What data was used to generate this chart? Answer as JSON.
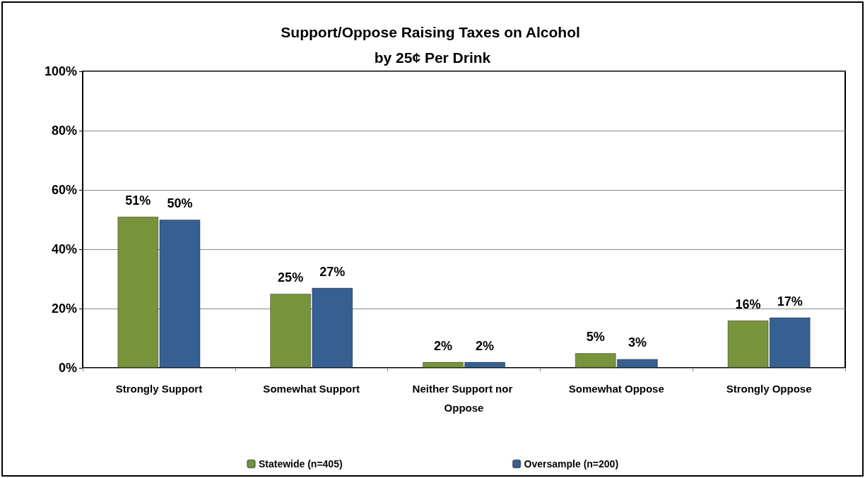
{
  "chart_data": {
    "type": "bar",
    "title": "Support/Oppose Raising Taxes on Alcohol by 25¢ Per Drink",
    "categories": [
      "Strongly Support",
      "Somewhat Support",
      "Neither Support nor Oppose",
      "Somewhat Oppose",
      "Strongly Oppose"
    ],
    "series": [
      {
        "name": "Statewide (n=405)",
        "color": "#77933c",
        "values": [
          51,
          25,
          2,
          5,
          16
        ],
        "value_labels": [
          "51%",
          "25%",
          "2%",
          "5%",
          "16%"
        ]
      },
      {
        "name": "Oversample (n=200)",
        "color": "#376092",
        "values": [
          50,
          27,
          2,
          3,
          17
        ],
        "value_labels": [
          "50%",
          "27%",
          "2%",
          "3%",
          "17%"
        ]
      }
    ],
    "ylim": [
      0,
      100
    ],
    "yticks": [
      {
        "value": 0,
        "label": "0%"
      },
      {
        "value": 20,
        "label": "20%"
      },
      {
        "value": 40,
        "label": "40%"
      },
      {
        "value": 60,
        "label": "60%"
      },
      {
        "value": 80,
        "label": "80%"
      },
      {
        "value": 100,
        "label": "100%"
      }
    ],
    "grid": "y",
    "legend": "bottom"
  }
}
